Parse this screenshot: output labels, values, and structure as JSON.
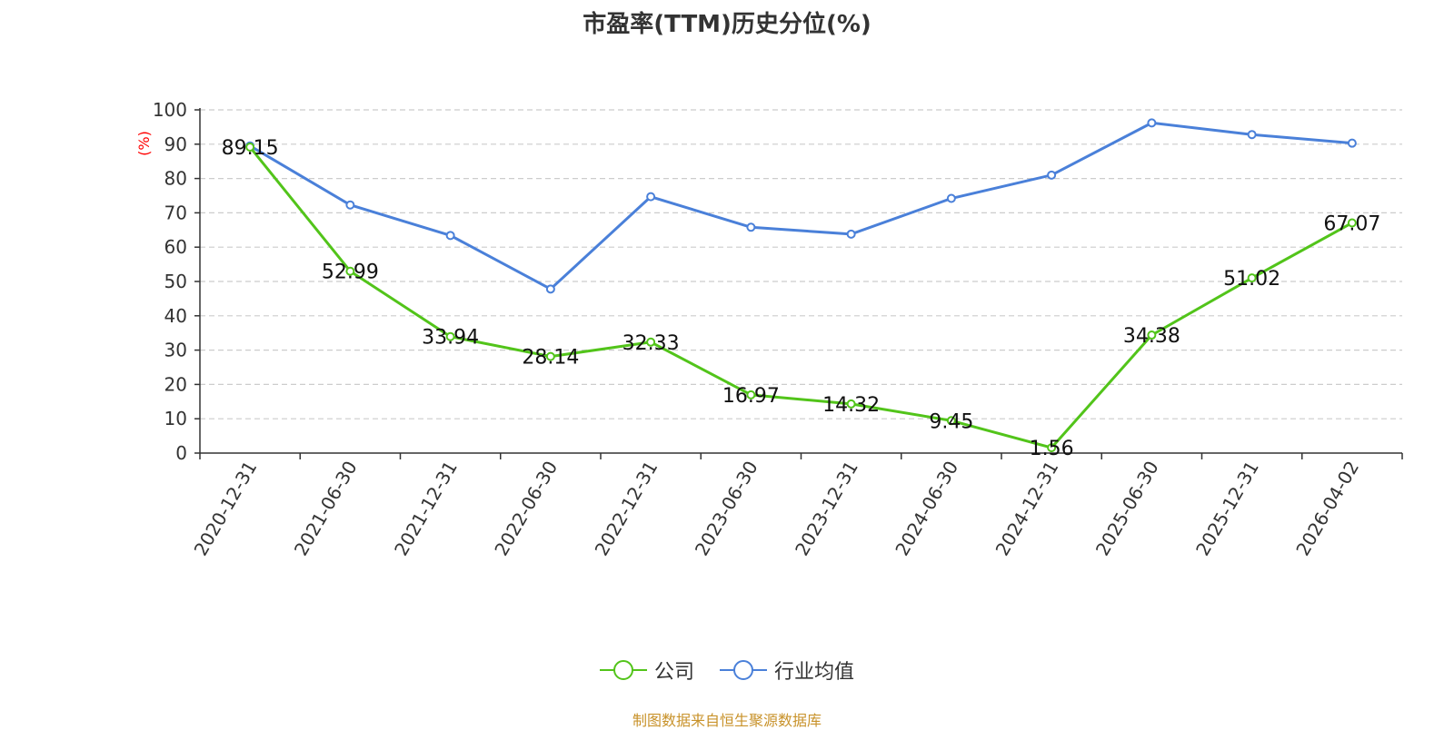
{
  "title": "市盈率(TTM)历史分位(%)",
  "source_note": "制图数据来自恒生聚源数据库",
  "colors": {
    "company": "#52c41a",
    "industry": "#4a80d9",
    "axis": "#333333",
    "grid": "#cccccc",
    "unit": "#ff0000",
    "source": "#c8922a"
  },
  "chart_data": {
    "type": "line",
    "title": "市盈率(TTM)历史分位(%)",
    "ylabel": "(%)",
    "ylim": [
      0,
      100
    ],
    "yticks": [
      0,
      10,
      20,
      30,
      40,
      50,
      60,
      70,
      80,
      90,
      100
    ],
    "grid": true,
    "legend_position": "bottom",
    "categories": [
      "2020-12-31",
      "2021-06-30",
      "2021-12-31",
      "2022-06-30",
      "2022-12-31",
      "2023-06-30",
      "2023-12-31",
      "2024-06-30",
      "2024-12-31",
      "2025-06-30",
      "2025-12-31",
      "2026-04-02"
    ],
    "series": [
      {
        "name": "公司",
        "values": [
          89.15,
          52.99,
          33.94,
          28.14,
          32.33,
          16.97,
          14.32,
          9.45,
          1.56,
          34.38,
          51.02,
          67.07
        ],
        "labels": [
          "89.15",
          "52.99",
          "33.94",
          "28.14",
          "32.33",
          "16.97",
          "14.32",
          "9.45",
          "1.56",
          "34.38",
          "51.02",
          "67.07"
        ]
      },
      {
        "name": "行业均值",
        "values": [
          89.5,
          72.3,
          63.4,
          47.8,
          74.7,
          65.8,
          63.8,
          74.2,
          81.0,
          96.2,
          92.8,
          90.3
        ]
      }
    ]
  }
}
